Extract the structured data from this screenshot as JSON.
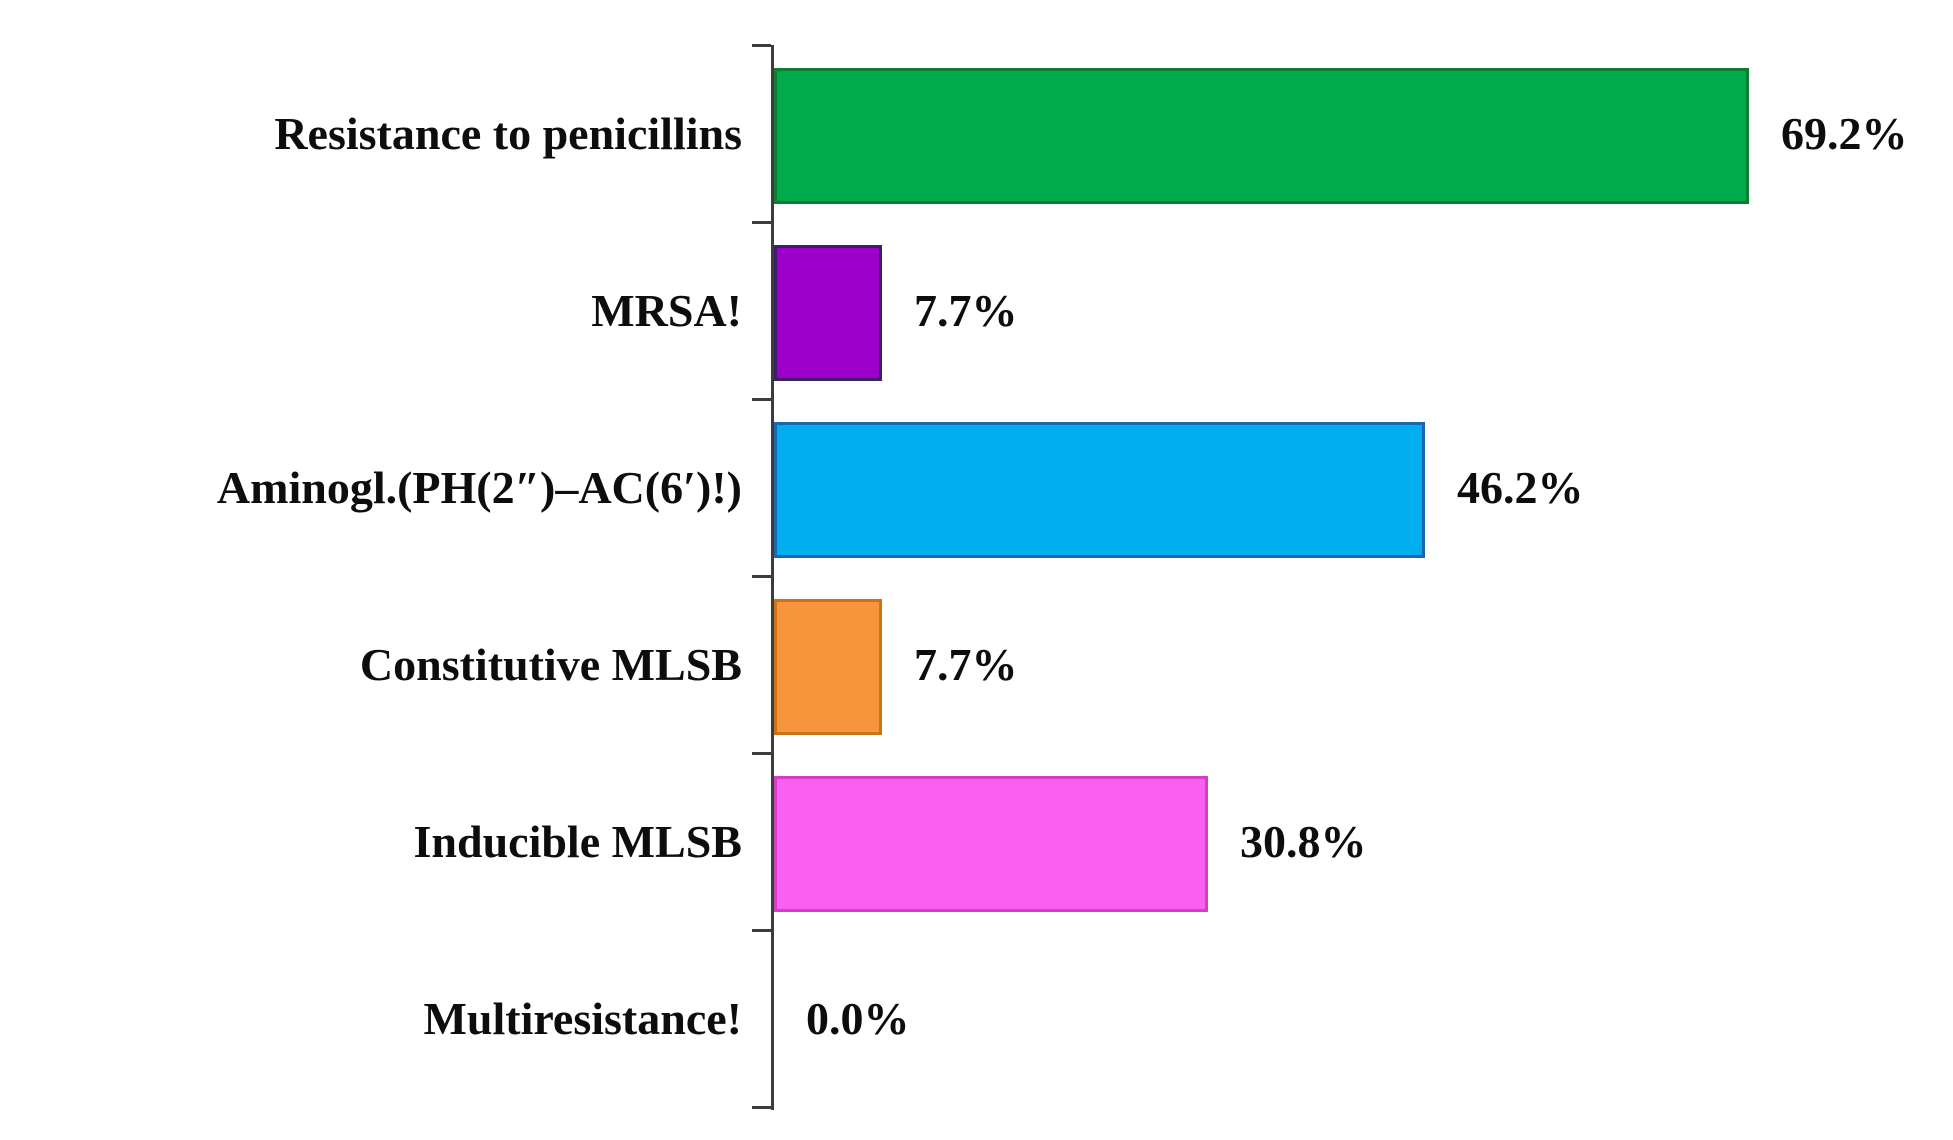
{
  "chart_data": {
    "type": "bar",
    "orientation": "horizontal",
    "title": "",
    "xlabel": "",
    "ylabel": "",
    "xlim": [
      0,
      75
    ],
    "grid": false,
    "legend": false,
    "axis_color": "#3c3c3c",
    "text_color": "#0d0d0d",
    "categories": [
      "Resistance to penicillins",
      "MRSA!",
      "Aminogl.(PH(2″)–AC(6′)!)",
      "Constitutive MLSB",
      "Inducible MLSB",
      "Multiresistance!"
    ],
    "values": [
      69.2,
      7.7,
      46.2,
      7.7,
      30.8,
      0.0
    ],
    "rows": [
      {
        "label": "Resistance to penicillins",
        "value": 69.2,
        "value_label": "69.2%",
        "fill": "#00AB4E",
        "border": "#0E7D33"
      },
      {
        "label": "MRSA!",
        "value": 7.7,
        "value_label": "7.7%",
        "fill": "#9E00CC",
        "border": "#3C2063"
      },
      {
        "label": "Aminogl.(PH(2″)–AC(6′)!)",
        "value": 46.2,
        "value_label": "46.2%",
        "fill": "#00AEEF",
        "border": "#1B66AE"
      },
      {
        "label": "Constitutive MLSB",
        "value": 7.7,
        "value_label": "7.7%",
        "fill": "#F7953D",
        "border": "#C9731A"
      },
      {
        "label": "Inducible MLSB",
        "value": 30.8,
        "value_label": "30.8%",
        "fill": "#F95FF0",
        "border": "#D23FC6"
      },
      {
        "label": "Multiresistance!",
        "value": 0.0,
        "value_label": "0.0%",
        "fill": null,
        "border": null
      }
    ]
  }
}
